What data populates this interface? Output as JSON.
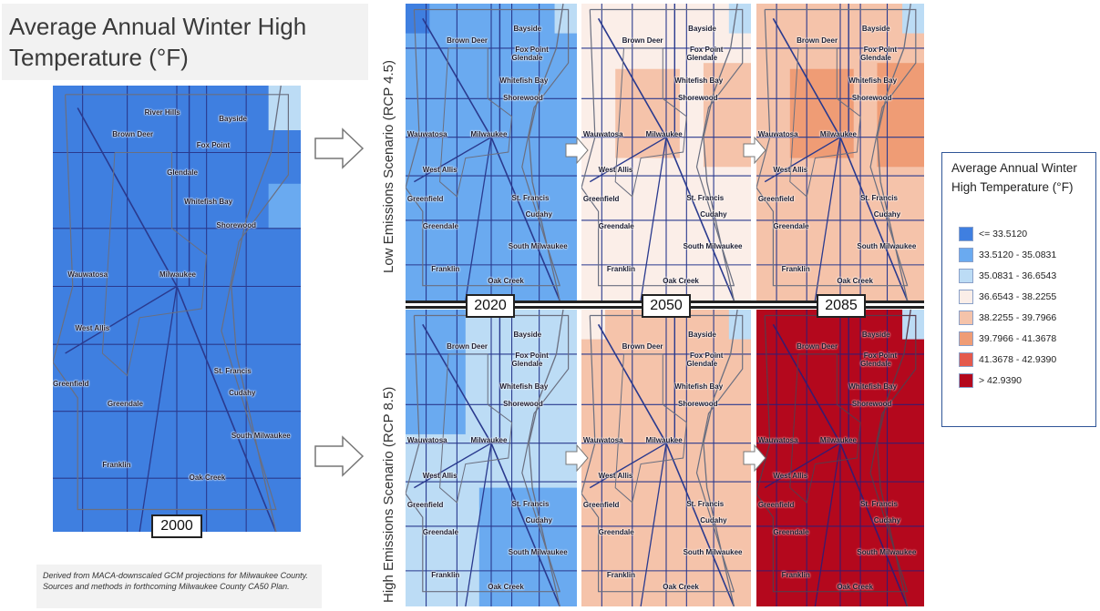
{
  "title": "Average Annual Winter High Temperature (°F)",
  "note": "Derived from MACA-downscaled GCM projections for Milwaukee County. Sources and methods in forthcoming Milwaukee County CA50 Plan.",
  "scenarios": {
    "low": "Low Emissions Scenario (RCP 4.5)",
    "high": "High Emissions Scenario (RCP 8.5)"
  },
  "years": {
    "y2000": "2000",
    "y2020": "2020",
    "y2050": "2050",
    "y2085": "2085"
  },
  "legend": {
    "title": "Average Annual Winter High Temperature (°F)",
    "items": [
      {
        "label": "<= 33.5120",
        "color": "#3f7fe0"
      },
      {
        "label": "33.5120 - 35.0831",
        "color": "#6aaaf0"
      },
      {
        "label": "35.0831 - 36.6543",
        "color": "#bcdcf5"
      },
      {
        "label": "36.6543 - 38.2255",
        "color": "#fbeee8"
      },
      {
        "label": "38.2255 - 39.7966",
        "color": "#f5c3aa"
      },
      {
        "label": "39.7966 - 41.3678",
        "color": "#ef9c75"
      },
      {
        "label": "41.3678 - 42.9390",
        "color": "#e45a4d"
      },
      {
        "label": "> 42.9390",
        "color": "#b4081d"
      }
    ]
  },
  "map_labels": {
    "river_hills": "River Hills",
    "bayside": "Bayside",
    "brown_deer": "Brown Deer",
    "fox_point": "Fox Point",
    "glendale": "Glendale",
    "whitefish_bay": "Whitefish Bay",
    "shorewood": "Shorewood",
    "wauwatosa": "Wauwatosa",
    "milwaukee": "Milwaukee",
    "west_allis": "West Allis",
    "st_francis": "St. Francis",
    "greenfield": "Greenfield",
    "cudahy": "Cudahy",
    "greendale": "Greendale",
    "south_milwaukee": "South Milwaukee",
    "franklin": "Franklin",
    "oak_creek": "Oak Creek"
  },
  "panels": [
    {
      "id": "map-2000",
      "base": "#3f7fe0",
      "patches": [
        [
          "#bcdcf5",
          "ne"
        ],
        [
          "#6aaaf0",
          "e1"
        ]
      ]
    },
    {
      "id": "map-low-2020",
      "base": "#6aaaf0",
      "patches": [
        [
          "#3f7fe0",
          "nw"
        ],
        [
          "#bcdcf5",
          "ne"
        ]
      ]
    },
    {
      "id": "map-low-2050",
      "base": "#fbeee8",
      "patches": [
        [
          "#bcdcf5",
          "ne"
        ],
        [
          "#f5c3aa",
          "core"
        ],
        [
          "#f5c3aa",
          "east"
        ]
      ]
    },
    {
      "id": "map-low-2085",
      "base": "#f5c3aa",
      "patches": [
        [
          "#bcdcf5",
          "ne"
        ],
        [
          "#ef9c75",
          "core"
        ],
        [
          "#ef9c75",
          "east"
        ]
      ]
    },
    {
      "id": "map-high-2020",
      "base": "#bcdcf5",
      "patches": [
        [
          "#6aaaf0",
          "west"
        ],
        [
          "#6aaaf0",
          "south"
        ]
      ]
    },
    {
      "id": "map-high-2050",
      "base": "#f5c3aa",
      "patches": [
        [
          "#bcdcf5",
          "ne"
        ],
        [
          "#fbeee8",
          "nw"
        ]
      ]
    },
    {
      "id": "map-high-2085",
      "base": "#b4081d",
      "patches": [
        [
          "#bcdcf5",
          "ne"
        ]
      ]
    }
  ]
}
